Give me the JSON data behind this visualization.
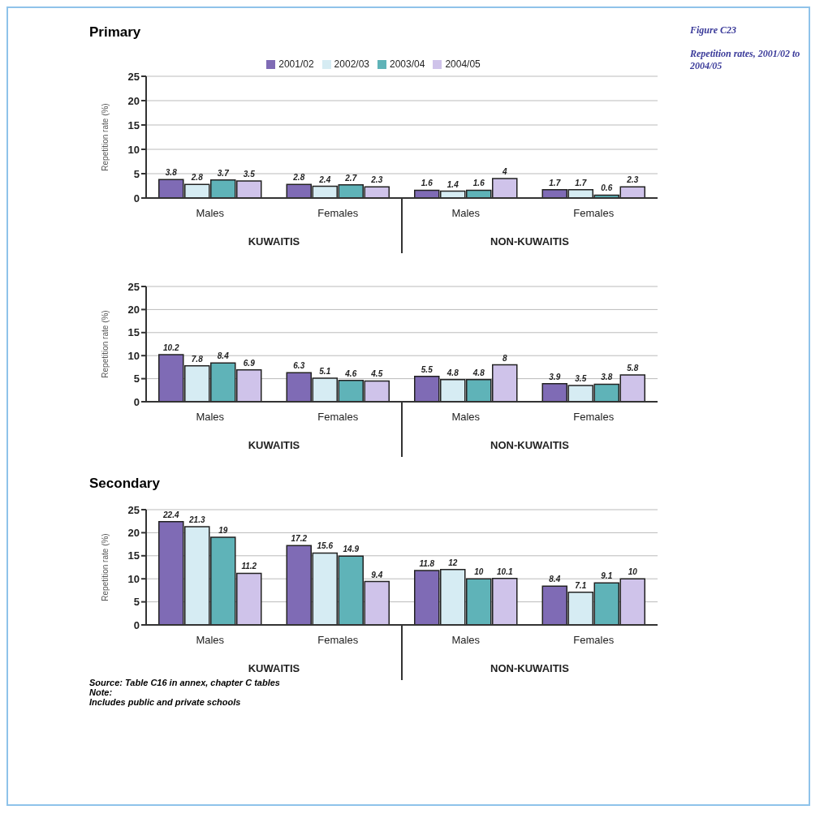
{
  "chart_data": [
    {
      "type": "bar",
      "title": "Primary",
      "ylabel": "Repetition rate (%)",
      "categories": [
        "Males",
        "Females",
        "Males",
        "Females"
      ],
      "series": [
        {
          "name": "2001/02",
          "color": "#7f6bb5",
          "values": [
            3.8,
            2.8,
            1.6,
            1.7
          ]
        },
        {
          "name": "2002/03",
          "color": "#d6ecf3",
          "values": [
            2.8,
            2.4,
            1.4,
            1.7
          ]
        },
        {
          "name": "2003/04",
          "color": "#5fb3b8",
          "values": [
            3.7,
            2.7,
            1.6,
            0.6
          ]
        },
        {
          "name": "2004/05",
          "color": "#cfc3ea",
          "values": [
            3.5,
            2.3,
            4.0,
            2.3
          ]
        }
      ],
      "ylim": [
        0,
        25
      ],
      "yticks": [
        0,
        5,
        10,
        15,
        20,
        25
      ],
      "grid": "y",
      "legend": "top",
      "data_labels": true,
      "annotations": [
        "KUWAITIS",
        "NON-KUWAITIS",
        "Figure C23",
        "Repetition rates, 2001/02 to 2004/05"
      ]
    },
    {
      "type": "bar",
      "ylabel": "Repetition rate (%)",
      "categories": [
        "Males",
        "Females",
        "Males",
        "Females"
      ],
      "series": [
        {
          "color": "#7f6bb5",
          "values": [
            10.2,
            6.3,
            5.5,
            3.9
          ]
        },
        {
          "color": "#d6ecf3",
          "values": [
            7.8,
            5.1,
            4.8,
            3.5
          ]
        },
        {
          "color": "#5fb3b8",
          "values": [
            8.4,
            4.6,
            4.8,
            3.8
          ]
        },
        {
          "color": "#cfc3ea",
          "values": [
            6.9,
            4.5,
            8.0,
            5.8
          ]
        }
      ],
      "ylim": [
        0,
        25
      ],
      "yticks": [
        0,
        5,
        10,
        15,
        20,
        25
      ],
      "grid": "y",
      "data_labels": true,
      "annotations": [
        "KUWAITIS",
        "NON-KUWAITIS"
      ]
    },
    {
      "type": "bar",
      "title": "Secondary",
      "ylabel": "Repetition rate (%)",
      "categories": [
        "Males",
        "Females",
        "Males",
        "Females"
      ],
      "series": [
        {
          "color": "#7f6bb5",
          "values": [
            22.4,
            17.2,
            11.8,
            8.4
          ]
        },
        {
          "color": "#d6ecf3",
          "values": [
            21.3,
            15.6,
            12.0,
            7.1
          ]
        },
        {
          "color": "#5fb3b8",
          "values": [
            19.0,
            14.9,
            10.0,
            9.1
          ]
        },
        {
          "color": "#cfc3ea",
          "values": [
            11.2,
            9.4,
            10.1,
            10.0
          ]
        }
      ],
      "ylim": [
        0,
        25
      ],
      "yticks": [
        0,
        5,
        10,
        15,
        20,
        25
      ],
      "grid": "y",
      "data_labels": true,
      "annotations": [
        "KUWAITIS",
        "NON-KUWAITIS",
        "Source: Table C16 in annex, chapter C tables",
        "Note:",
        "Includes public and private schools"
      ]
    }
  ]
}
